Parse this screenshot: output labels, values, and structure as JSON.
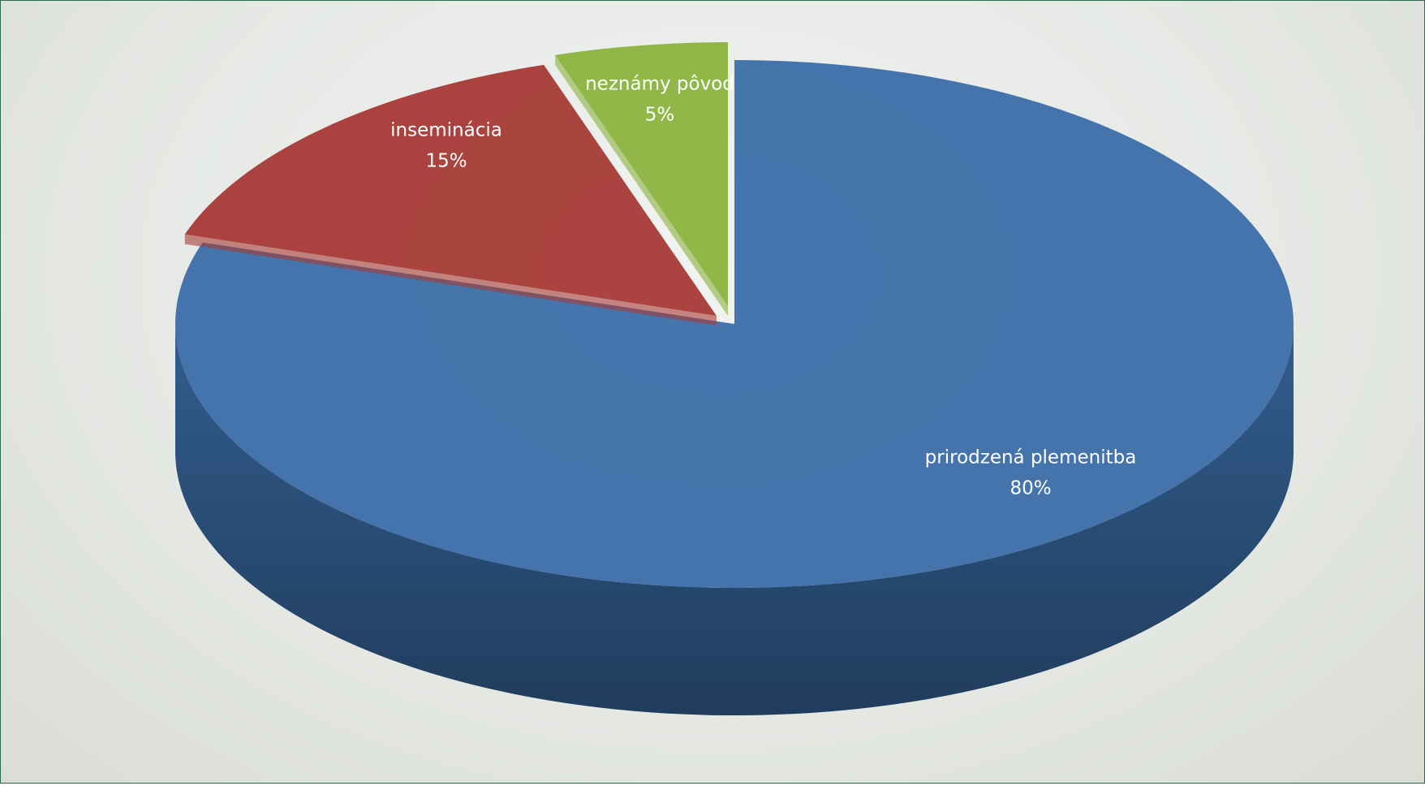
{
  "chart_data": {
    "type": "pie3d",
    "categories": [
      "prirodzená plemenitba",
      "inseminácia",
      "neznámy pôvod"
    ],
    "values": [
      80,
      15,
      5
    ],
    "value_labels": [
      "80%",
      "15%",
      "5%"
    ],
    "colors": [
      "#3b6ea8",
      "#a63a36",
      "#8bb33e"
    ]
  }
}
